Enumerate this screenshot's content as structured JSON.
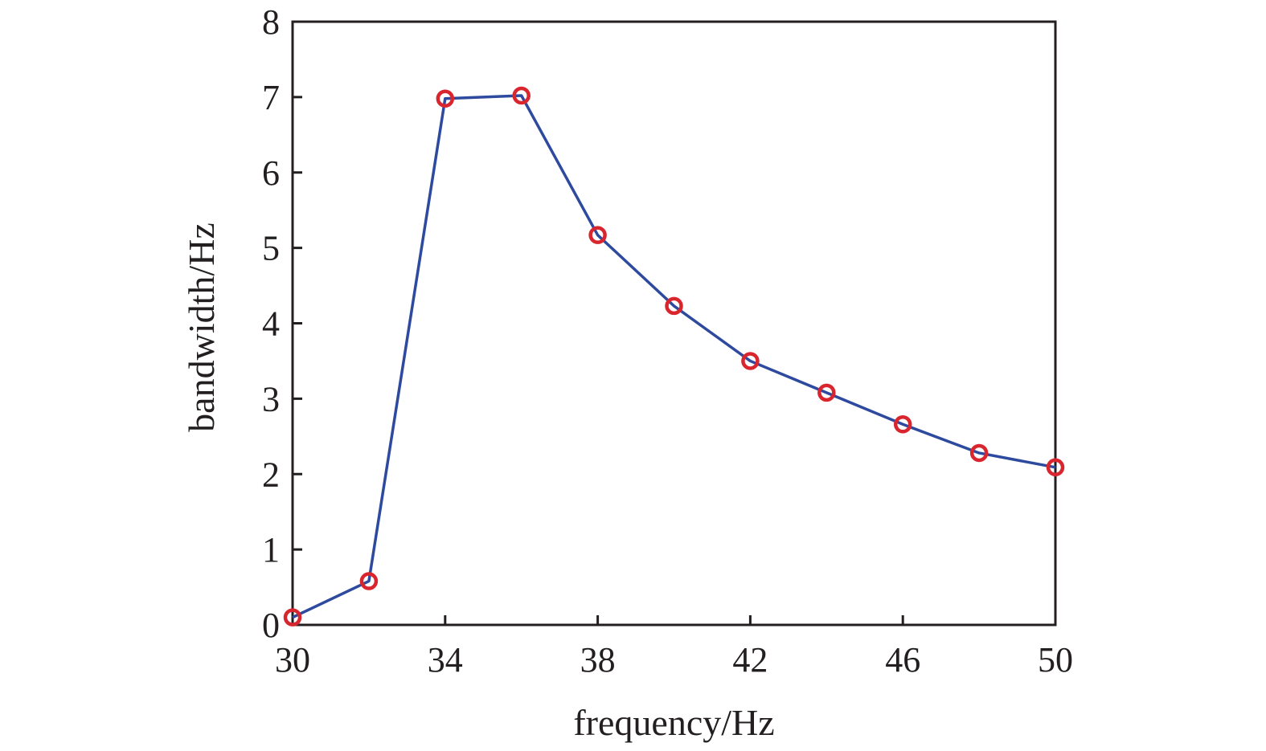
{
  "chart_data": {
    "type": "line",
    "title": "",
    "xlabel": "frequency/Hz",
    "ylabel": "bandwidth/Hz",
    "xlim": [
      30,
      50
    ],
    "ylim": [
      0,
      8
    ],
    "xticks": [
      30,
      34,
      38,
      42,
      46,
      50
    ],
    "yticks": [
      0,
      1,
      2,
      3,
      4,
      5,
      6,
      7,
      8
    ],
    "grid": false,
    "legend": "none",
    "series": [
      {
        "x": [
          30,
          32,
          34,
          36,
          38,
          40,
          42,
          44,
          46,
          48,
          50
        ],
        "y": [
          0.1,
          0.58,
          6.98,
          7.02,
          5.17,
          4.23,
          3.5,
          3.08,
          2.66,
          2.28,
          2.09
        ],
        "line_color": "#2e4a9e",
        "marker": "circle",
        "marker_color": "#d9262e"
      }
    ]
  },
  "colors": {
    "axis": "#231f20",
    "line": "#2e4a9e",
    "marker": "#d9262e"
  }
}
